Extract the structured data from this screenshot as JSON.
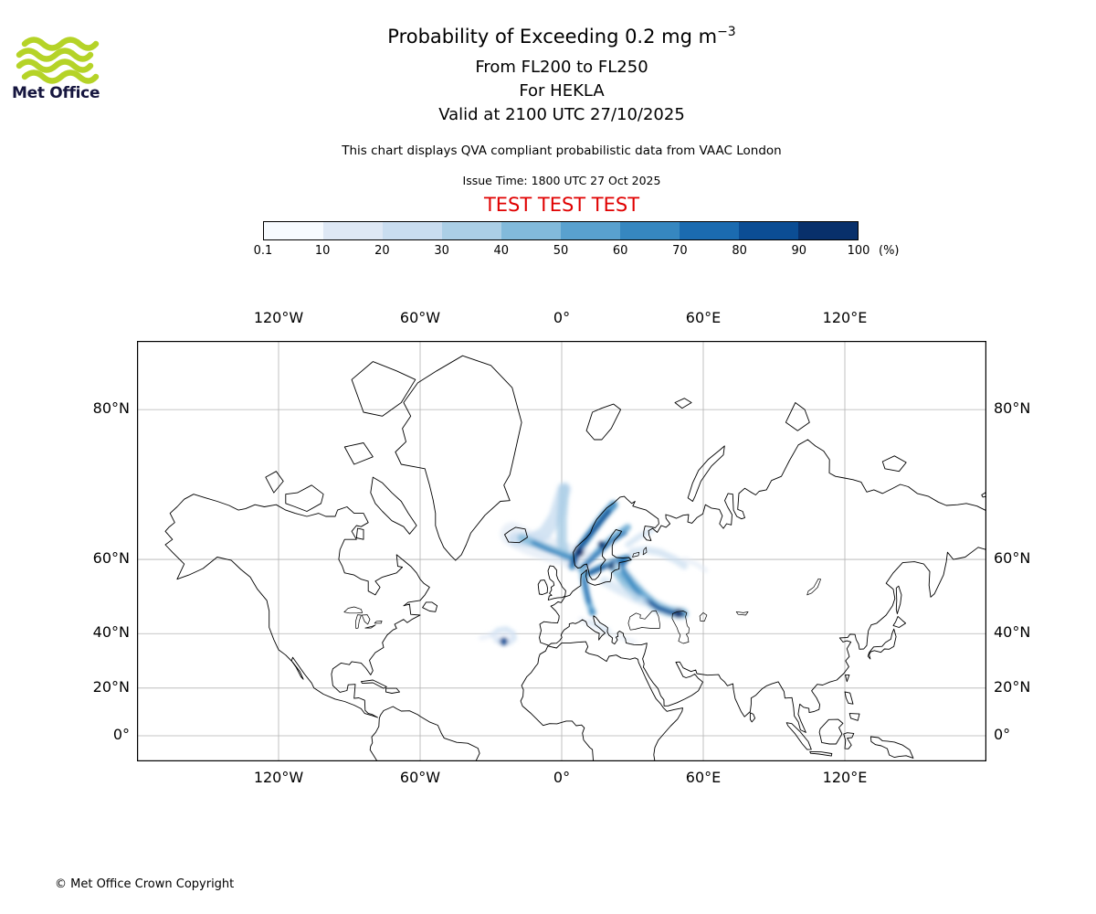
{
  "logo": {
    "text": "Met Office"
  },
  "header": {
    "title_main": "Probability of Exceeding 0.2 mg m",
    "title_exponent": "−3",
    "subtitle1": "From FL200 to FL250",
    "subtitle2": "For HEKLA",
    "subtitle3": "Valid at 2100 UTC 27/10/2025",
    "note": "This chart displays QVA compliant probabilistic data from VAAC London",
    "issue_time": "Issue Time: 1800 UTC 27 Oct 2025",
    "test_banner": "TEST TEST TEST"
  },
  "colors": {
    "logo_green": "#b5d327",
    "logo_text": "#16163f",
    "test_red": "#e00000",
    "grid": "#b3b3b3",
    "coastline": "#000000"
  },
  "colorbar": {
    "ticks": [
      "0.1",
      "10",
      "20",
      "30",
      "40",
      "50",
      "60",
      "70",
      "80",
      "90",
      "100"
    ],
    "unit": "(%)"
  },
  "map": {
    "lon_tick_labels": [
      "120°W",
      "60°W",
      "0°",
      "60°E",
      "120°E"
    ],
    "lon_tick_values": [
      -120,
      -60,
      0,
      60,
      120
    ],
    "lat_tick_labels": [
      "80°N",
      "60°N",
      "40°N",
      "20°N",
      "0°"
    ],
    "lat_tick_values": [
      80,
      60,
      40,
      20,
      0
    ]
  },
  "footer": {
    "copyright": "© Met Office Crown Copyright"
  },
  "chart_data": {
    "type": "heatmap",
    "title": "Probability of Exceeding 0.2 mg m⁻³",
    "flight_levels": "FL200 to FL250",
    "volcano": "HEKLA",
    "valid_time": "2100 UTC 27/10/2025",
    "issue_time": "1800 UTC 27 Oct 2025",
    "source": "VAAC London",
    "units": "%",
    "threshold": "0.2 mg m⁻³",
    "probability_bins": [
      0.1,
      10,
      20,
      30,
      40,
      50,
      60,
      70,
      80,
      90,
      100
    ],
    "colorbar_colors": [
      "#f7fbff",
      "#dee8f5",
      "#c9ddf0",
      "#abcfe6",
      "#82badb",
      "#59a1cf",
      "#3687c0",
      "#1b6bb0",
      "#0b4d94",
      "#08306b"
    ],
    "projection": {
      "type": "mercator",
      "lon_range": [
        -180,
        180
      ],
      "lat_range": [
        -11,
        84
      ]
    },
    "plume_summary": "Highest exceedance probabilities (70–100%) over Norway, Sweden and the Baltic; a fan-shaped plume stretches from Iceland toward Scandinavia, a band extends southeast across eastern Europe to the region north of the Caspian Sea, a cyclonic swirl with a high-probability core lies near the Azores, and faint traces occur over the central Mediterranean.",
    "plumes": [
      {
        "c": 1,
        "w": 26,
        "o": 0.65,
        "pts": [
          [
            -21,
            65
          ],
          [
            -13,
            63.2
          ],
          [
            -5,
            62
          ],
          [
            2,
            61
          ],
          [
            8,
            60.2
          ]
        ]
      },
      {
        "c": 2,
        "w": 15,
        "o": 0.8,
        "pts": [
          [
            1,
            72
          ],
          [
            -2.5,
            68
          ],
          [
            -7,
            65.2
          ],
          [
            -13,
            63.8
          ],
          [
            -19.5,
            64
          ]
        ]
      },
      {
        "c": 3,
        "w": 11,
        "o": 0.85,
        "pts": [
          [
            1,
            72
          ],
          [
            0,
            67.5
          ],
          [
            0,
            63.5
          ],
          [
            1.5,
            60.8
          ]
        ]
      },
      {
        "c": 4,
        "w": 9,
        "o": 0.85,
        "pts": [
          [
            -17,
            64.3
          ],
          [
            -10,
            63
          ],
          [
            -3,
            61.8
          ],
          [
            3,
            60.6
          ]
        ]
      },
      {
        "c": 6,
        "w": 5,
        "o": 0.9,
        "pts": [
          [
            -12,
            63.4
          ],
          [
            -6,
            62.1
          ],
          [
            0,
            61
          ],
          [
            5,
            60.1
          ]
        ]
      },
      {
        "c": 6,
        "w": 9,
        "o": 0.9,
        "pts": [
          [
            4.5,
            58.6
          ],
          [
            6,
            61
          ],
          [
            9.5,
            63.5
          ],
          [
            13.8,
            66
          ],
          [
            18,
            68.2
          ],
          [
            22,
            69.8
          ]
        ]
      },
      {
        "c": 8,
        "w": 4.5,
        "o": 0.95,
        "pts": [
          [
            5,
            59.2
          ],
          [
            7,
            61.9
          ],
          [
            11,
            64.4
          ],
          [
            16,
            66.9
          ],
          [
            20,
            68.8
          ]
        ]
      },
      {
        "c": 5,
        "w": 7,
        "o": 0.85,
        "pts": [
          [
            8,
            57.8
          ],
          [
            12,
            60
          ],
          [
            17,
            62.5
          ],
          [
            23,
            64.8
          ],
          [
            28,
            66.2
          ]
        ]
      },
      {
        "c": 7,
        "w": 4,
        "o": 0.9,
        "pts": [
          [
            10,
            58.6
          ],
          [
            15,
            61
          ],
          [
            21,
            63.6
          ],
          [
            27,
            65.2
          ]
        ]
      },
      {
        "c": 6,
        "w": 7,
        "o": 0.9,
        "pts": [
          [
            10,
            56.6
          ],
          [
            14,
            57.6
          ],
          [
            18,
            58.6
          ],
          [
            23,
            59.6
          ],
          [
            28,
            60.4
          ]
        ]
      },
      {
        "c": 8,
        "w": 4,
        "o": 0.9,
        "pts": [
          [
            12,
            56.9
          ],
          [
            17,
            58.1
          ],
          [
            22,
            59.3
          ]
        ]
      },
      {
        "c": 5,
        "w": 7,
        "o": 0.85,
        "pts": [
          [
            9,
            56.4
          ],
          [
            10,
            53.4
          ],
          [
            11,
            50.4
          ],
          [
            12.5,
            47.6
          ]
        ]
      },
      {
        "c": 7,
        "w": 4,
        "o": 0.9,
        "pts": [
          [
            9.6,
            55.4
          ],
          [
            10.6,
            52.4
          ],
          [
            11.6,
            49.6
          ]
        ]
      },
      {
        "c": 3,
        "w": 13,
        "o": 0.75,
        "pts": [
          [
            24,
            58.4
          ],
          [
            29,
            55
          ],
          [
            34,
            51.6
          ],
          [
            39,
            48.8
          ],
          [
            45,
            47
          ],
          [
            51,
            46.4
          ]
        ]
      },
      {
        "c": 5,
        "w": 8,
        "o": 0.85,
        "pts": [
          [
            26,
            57
          ],
          [
            31,
            53.6
          ],
          [
            36,
            50.6
          ],
          [
            41,
            48
          ],
          [
            47,
            46.6
          ],
          [
            52,
            46.2
          ]
        ]
      },
      {
        "c": 8,
        "w": 4.5,
        "o": 0.95,
        "pts": [
          [
            36,
            50
          ],
          [
            41,
            47.8
          ],
          [
            46,
            46.6
          ],
          [
            51,
            46
          ]
        ]
      },
      {
        "c": 4,
        "w": 6,
        "o": 0.8,
        "pts": [
          [
            20,
            59
          ],
          [
            24,
            56
          ],
          [
            28,
            53
          ],
          [
            32,
            50.6
          ]
        ]
      },
      {
        "c": 6,
        "w": 4.5,
        "o": 0.85,
        "pts": [
          [
            24,
            60
          ],
          [
            27,
            57
          ],
          [
            30,
            54
          ],
          [
            33,
            51.6
          ]
        ]
      },
      {
        "c": 2,
        "w": 8,
        "o": 0.7,
        "pts": [
          [
            30,
            61.6
          ],
          [
            36,
            62
          ],
          [
            42,
            61.4
          ],
          [
            48,
            60
          ],
          [
            52,
            58.6
          ]
        ]
      },
      {
        "c": 1,
        "w": 5,
        "o": 0.65,
        "pts": [
          [
            52,
            60
          ],
          [
            57,
            59
          ],
          [
            61,
            57.6
          ]
        ]
      },
      {
        "c": 2,
        "w": 6,
        "o": 0.7,
        "pts": [
          [
            28,
            63
          ],
          [
            33,
            64.6
          ],
          [
            38,
            65.6
          ]
        ]
      },
      {
        "c": 2,
        "w": 5,
        "o": 0.8,
        "pts": [
          [
            -29.5,
            39.5
          ],
          [
            -27,
            41.2
          ],
          [
            -23.5,
            41.6
          ],
          [
            -20.5,
            40.2
          ],
          [
            -20,
            38.4
          ],
          [
            -22,
            37
          ],
          [
            -25.5,
            36.9
          ],
          [
            -28,
            37.9
          ]
        ]
      },
      {
        "c": 1,
        "w": 8,
        "o": 0.55,
        "pts": [
          [
            -28,
            39.4
          ],
          [
            -25,
            40.4
          ],
          [
            -22,
            39.8
          ],
          [
            -21.6,
            38
          ],
          [
            -24,
            37.3
          ],
          [
            -27,
            37.9
          ]
        ]
      },
      {
        "c": 1,
        "w": 6,
        "o": 0.55,
        "pts": [
          [
            -34,
            38.6
          ],
          [
            -31,
            39.3
          ],
          [
            -29,
            39.6
          ]
        ]
      },
      {
        "c": 8,
        "at": [
          -24.5,
          37.4
        ],
        "r": 4.5,
        "o": 0.95
      },
      {
        "c": 1,
        "w": 5,
        "o": 0.65,
        "pts": [
          [
            8,
            44.6
          ],
          [
            12,
            43
          ],
          [
            16,
            41.6
          ],
          [
            20,
            40
          ]
        ]
      },
      {
        "c": 2,
        "w": 3.5,
        "o": 0.75,
        "pts": [
          [
            12,
            44
          ],
          [
            16,
            42.4
          ],
          [
            20,
            41
          ]
        ]
      },
      {
        "c": 1,
        "w": 4,
        "o": 0.6,
        "pts": [
          [
            22,
            39.6
          ],
          [
            27,
            38.2
          ],
          [
            31,
            37.2
          ]
        ]
      },
      {
        "c": 6,
        "at": [
          13,
          46.6
        ],
        "r": 4,
        "o": 0.85
      },
      {
        "c": 2,
        "w": 10,
        "o": 0.6,
        "pts": [
          [
            18,
            55
          ],
          [
            24,
            53
          ],
          [
            30,
            51
          ],
          [
            35,
            49.6
          ]
        ]
      },
      {
        "c": 9,
        "at": [
          7.5,
          61.5
        ],
        "r": 5,
        "o": 0.9
      },
      {
        "c": 9,
        "at": [
          17,
          63
        ],
        "r": 4,
        "o": 0.9
      },
      {
        "c": 7,
        "at": [
          26,
          59.5
        ],
        "r": 5,
        "o": 0.85
      },
      {
        "c": 9,
        "at": [
          21,
          58.5
        ],
        "r": 3.5,
        "o": 0.9
      },
      {
        "c": 9,
        "at": [
          49.5,
          46.3
        ],
        "r": 5,
        "o": 0.9
      }
    ]
  }
}
